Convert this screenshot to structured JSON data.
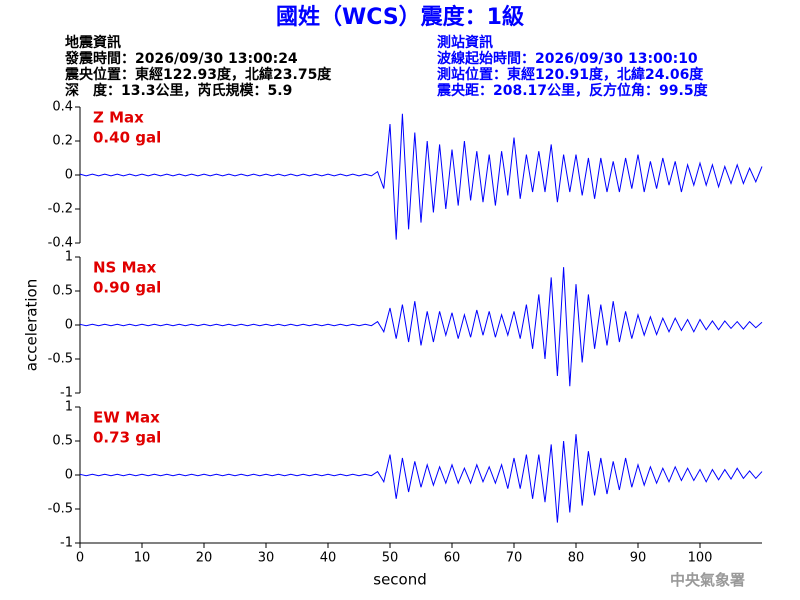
{
  "header": {
    "title": "國姓（WCS）震度：1級",
    "left_info": [
      "地震資訊",
      "發震時間：2026/09/30 13:00:24",
      "震央位置：東經122.93度，北緯23.75度",
      "深　度：13.3公里，芮氏規模：5.9"
    ],
    "right_info": [
      "測站資訊",
      "波線起始時間：2026/09/30 13:00:10",
      "測站位置：東經120.91度，北緯24.06度",
      "震央距：208.17公里，反方位角：99.5度"
    ],
    "footer": "中央氣象署"
  },
  "chart_data": [
    {
      "type": "line",
      "title": "Z Max",
      "annotation": "0.40 gal",
      "color": "#0000ff",
      "xlim": [
        0,
        110
      ],
      "ylim": [
        -0.4,
        0.4
      ],
      "yticks": [
        0.4,
        0.2,
        0,
        -0.2,
        -0.4
      ],
      "x": [
        0,
        1,
        2,
        3,
        4,
        5,
        6,
        7,
        8,
        9,
        10,
        11,
        12,
        13,
        14,
        15,
        16,
        17,
        18,
        19,
        20,
        21,
        22,
        23,
        24,
        25,
        26,
        27,
        28,
        29,
        30,
        31,
        32,
        33,
        34,
        35,
        36,
        37,
        38,
        39,
        40,
        41,
        42,
        43,
        44,
        45,
        46,
        47,
        48,
        49,
        50,
        51,
        52,
        53,
        54,
        55,
        56,
        57,
        58,
        59,
        60,
        61,
        62,
        63,
        64,
        65,
        66,
        67,
        68,
        69,
        70,
        71,
        72,
        73,
        74,
        75,
        76,
        77,
        78,
        79,
        80,
        81,
        82,
        83,
        84,
        85,
        86,
        87,
        88,
        89,
        90,
        91,
        92,
        93,
        94,
        95,
        96,
        97,
        98,
        99,
        100,
        101,
        102,
        103,
        104,
        105,
        106,
        107,
        108,
        109,
        110
      ],
      "values": [
        0.005,
        -0.005,
        0.005,
        -0.005,
        0.005,
        -0.005,
        0.005,
        -0.005,
        0.005,
        -0.005,
        0.005,
        -0.005,
        0.005,
        -0.005,
        0.005,
        -0.005,
        0.005,
        -0.005,
        0.005,
        -0.005,
        0.005,
        -0.005,
        0.005,
        -0.005,
        0.005,
        -0.005,
        0.005,
        -0.005,
        0.005,
        -0.005,
        0.005,
        -0.005,
        0.005,
        -0.005,
        0.005,
        -0.005,
        0.005,
        -0.005,
        0.005,
        -0.005,
        0.005,
        -0.005,
        0.005,
        -0.005,
        0.005,
        -0.005,
        0.005,
        -0.005,
        0.02,
        -0.08,
        0.3,
        -0.38,
        0.36,
        -0.32,
        0.25,
        -0.28,
        0.2,
        -0.22,
        0.18,
        -0.2,
        0.15,
        -0.18,
        0.2,
        -0.15,
        0.14,
        -0.16,
        0.12,
        -0.18,
        0.14,
        -0.12,
        0.22,
        -0.14,
        0.12,
        -0.1,
        0.14,
        -0.1,
        0.18,
        -0.16,
        0.12,
        -0.1,
        0.12,
        -0.12,
        0.1,
        -0.14,
        0.1,
        -0.1,
        0.08,
        -0.1,
        0.1,
        -0.08,
        0.12,
        -0.1,
        0.08,
        -0.08,
        0.1,
        -0.06,
        0.08,
        -0.1,
        0.06,
        -0.06,
        0.07,
        -0.06,
        0.06,
        -0.07,
        0.05,
        -0.05,
        0.06,
        -0.05,
        0.04,
        -0.04,
        0.05
      ]
    },
    {
      "type": "line",
      "title": "NS Max",
      "annotation": "0.90 gal",
      "color": "#0000ff",
      "ylabel": "acceleration",
      "xlim": [
        0,
        110
      ],
      "ylim": [
        -1,
        1
      ],
      "yticks": [
        1,
        0.5,
        0,
        -0.5,
        -1
      ],
      "x": [
        0,
        1,
        2,
        3,
        4,
        5,
        6,
        7,
        8,
        9,
        10,
        11,
        12,
        13,
        14,
        15,
        16,
        17,
        18,
        19,
        20,
        21,
        22,
        23,
        24,
        25,
        26,
        27,
        28,
        29,
        30,
        31,
        32,
        33,
        34,
        35,
        36,
        37,
        38,
        39,
        40,
        41,
        42,
        43,
        44,
        45,
        46,
        47,
        48,
        49,
        50,
        51,
        52,
        53,
        54,
        55,
        56,
        57,
        58,
        59,
        60,
        61,
        62,
        63,
        64,
        65,
        66,
        67,
        68,
        69,
        70,
        71,
        72,
        73,
        74,
        75,
        76,
        77,
        78,
        79,
        80,
        81,
        82,
        83,
        84,
        85,
        86,
        87,
        88,
        89,
        90,
        91,
        92,
        93,
        94,
        95,
        96,
        97,
        98,
        99,
        100,
        101,
        102,
        103,
        104,
        105,
        106,
        107,
        108,
        109,
        110
      ],
      "values": [
        0.01,
        -0.01,
        0.01,
        -0.01,
        0.01,
        -0.01,
        0.01,
        -0.01,
        0.01,
        -0.01,
        0.01,
        -0.01,
        0.01,
        -0.01,
        0.01,
        -0.01,
        0.01,
        -0.01,
        0.01,
        -0.01,
        0.01,
        -0.01,
        0.01,
        -0.01,
        0.01,
        -0.01,
        0.01,
        -0.01,
        0.01,
        -0.01,
        0.01,
        -0.01,
        0.01,
        -0.01,
        0.01,
        -0.01,
        0.01,
        -0.01,
        0.01,
        -0.01,
        0.01,
        -0.01,
        0.01,
        -0.01,
        0.01,
        -0.01,
        0.01,
        -0.01,
        0.05,
        -0.1,
        0.25,
        -0.2,
        0.3,
        -0.25,
        0.35,
        -0.3,
        0.2,
        -0.25,
        0.2,
        -0.15,
        0.18,
        -0.2,
        0.15,
        -0.18,
        0.22,
        -0.15,
        0.2,
        -0.18,
        0.15,
        -0.15,
        0.2,
        -0.2,
        0.3,
        -0.35,
        0.45,
        -0.5,
        0.7,
        -0.75,
        0.85,
        -0.9,
        0.6,
        -0.55,
        0.45,
        -0.35,
        0.3,
        -0.3,
        0.35,
        -0.25,
        0.2,
        -0.2,
        0.15,
        -0.15,
        0.12,
        -0.14,
        0.1,
        -0.1,
        0.1,
        -0.08,
        0.08,
        -0.1,
        0.08,
        -0.07,
        0.06,
        -0.07,
        0.06,
        -0.05,
        0.05,
        -0.06,
        0.05,
        -0.04,
        0.04
      ]
    },
    {
      "type": "line",
      "title": "EW Max",
      "annotation": "0.73 gal",
      "color": "#0000ff",
      "xlabel": "second",
      "xlim": [
        0,
        110
      ],
      "xticks": [
        0,
        10,
        20,
        30,
        40,
        50,
        60,
        70,
        80,
        90,
        100
      ],
      "ylim": [
        -1,
        1
      ],
      "yticks": [
        1,
        0.5,
        0,
        -0.5,
        -1
      ],
      "x": [
        0,
        1,
        2,
        3,
        4,
        5,
        6,
        7,
        8,
        9,
        10,
        11,
        12,
        13,
        14,
        15,
        16,
        17,
        18,
        19,
        20,
        21,
        22,
        23,
        24,
        25,
        26,
        27,
        28,
        29,
        30,
        31,
        32,
        33,
        34,
        35,
        36,
        37,
        38,
        39,
        40,
        41,
        42,
        43,
        44,
        45,
        46,
        47,
        48,
        49,
        50,
        51,
        52,
        53,
        54,
        55,
        56,
        57,
        58,
        59,
        60,
        61,
        62,
        63,
        64,
        65,
        66,
        67,
        68,
        69,
        70,
        71,
        72,
        73,
        74,
        75,
        76,
        77,
        78,
        79,
        80,
        81,
        82,
        83,
        84,
        85,
        86,
        87,
        88,
        89,
        90,
        91,
        92,
        93,
        94,
        95,
        96,
        97,
        98,
        99,
        100,
        101,
        102,
        103,
        104,
        105,
        106,
        107,
        108,
        109,
        110
      ],
      "values": [
        0.01,
        -0.01,
        0.01,
        -0.01,
        0.01,
        -0.01,
        0.01,
        -0.01,
        0.01,
        -0.01,
        0.01,
        -0.01,
        0.01,
        -0.01,
        0.01,
        -0.01,
        0.01,
        -0.01,
        0.01,
        -0.01,
        0.01,
        -0.01,
        0.01,
        -0.01,
        0.01,
        -0.01,
        0.01,
        -0.01,
        0.01,
        -0.01,
        0.01,
        -0.01,
        0.01,
        -0.01,
        0.01,
        -0.01,
        0.01,
        -0.01,
        0.01,
        -0.01,
        0.01,
        -0.01,
        0.01,
        -0.01,
        0.01,
        -0.01,
        0.01,
        -0.01,
        0.05,
        -0.1,
        0.3,
        -0.35,
        0.25,
        -0.25,
        0.2,
        -0.18,
        0.15,
        -0.15,
        0.12,
        -0.12,
        0.15,
        -0.12,
        0.1,
        -0.12,
        0.15,
        -0.1,
        0.12,
        -0.12,
        0.15,
        -0.2,
        0.25,
        -0.2,
        0.3,
        -0.35,
        0.3,
        -0.4,
        0.45,
        -0.7,
        0.5,
        -0.55,
        0.6,
        -0.45,
        0.35,
        -0.3,
        0.25,
        -0.28,
        0.2,
        -0.22,
        0.25,
        -0.18,
        0.15,
        -0.15,
        0.12,
        -0.12,
        0.1,
        -0.1,
        0.12,
        -0.08,
        0.1,
        -0.08,
        0.08,
        -0.1,
        0.08,
        -0.07,
        0.08,
        -0.06,
        0.1,
        -0.05,
        0.06,
        -0.05,
        0.05
      ]
    }
  ]
}
